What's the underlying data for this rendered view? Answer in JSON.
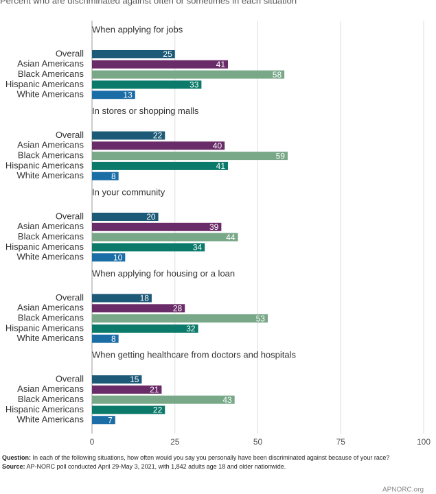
{
  "chart_data": {
    "type": "grouped-hbar",
    "subtitle": "Percent who are discriminated against often or sometimes in each situation",
    "groups": [
      "When applying for jobs",
      "In stores or shopping malls",
      "In your community",
      "When applying for housing or a loan",
      "When getting healthcare from doctors and hospitals"
    ],
    "series": [
      {
        "name": "Overall",
        "color": "#1d5a78",
        "values": [
          25,
          22,
          20,
          18,
          15
        ]
      },
      {
        "name": "Asian Americans",
        "color": "#6a2c68",
        "values": [
          41,
          40,
          39,
          28,
          21
        ]
      },
      {
        "name": "Black Americans",
        "color": "#78a888",
        "values": [
          58,
          59,
          44,
          53,
          43
        ]
      },
      {
        "name": "Hispanic Americans",
        "color": "#0c7a6a",
        "values": [
          33,
          41,
          34,
          32,
          22
        ]
      },
      {
        "name": "White Americans",
        "color": "#1b6da6",
        "values": [
          13,
          8,
          10,
          8,
          7
        ]
      }
    ],
    "xlim": [
      0,
      100
    ],
    "xticks": [
      0,
      25,
      50,
      75,
      100
    ],
    "grid": true,
    "notes": [
      {
        "label": "Question:",
        "text": "In each of the following situations, how often would you say you personally have been discriminated against because of your race?"
      },
      {
        "label": "Source:",
        "text": "AP-NORC poll conducted April 29-May 3, 2021, with 1,842 adults age 18 and older nationwide."
      }
    ],
    "footer": "APNORC.org"
  }
}
